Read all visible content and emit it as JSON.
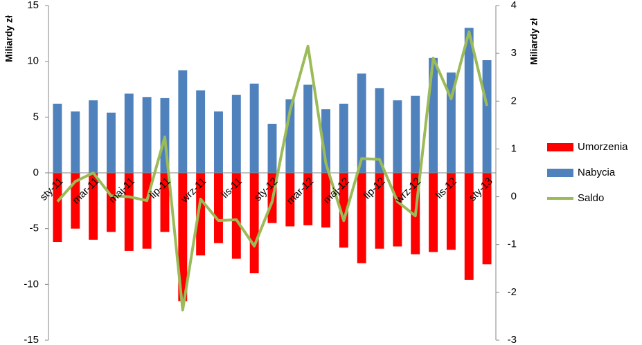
{
  "chart_data": {
    "type": "bar",
    "y_label": "Miliardy zł",
    "y2_label": "Miliardy zł",
    "categories": [
      "sty-11",
      null,
      "mar-11",
      null,
      "maj-11",
      null,
      "lip-11",
      null,
      "wrz-11",
      null,
      "lis-11",
      null,
      "sty-12",
      null,
      "mar-12",
      null,
      "maj-12",
      null,
      "lip-12",
      null,
      "wrz-12",
      null,
      "lis-12",
      null,
      "sty-13"
    ],
    "series": [
      {
        "name": "Umorzenia",
        "color": "#ff0000",
        "values": [
          -6.2,
          -5.0,
          -6.0,
          -5.3,
          -7.0,
          -6.8,
          -5.3,
          -11.5,
          -7.4,
          -6.3,
          -7.7,
          -9.0,
          -4.5,
          -4.8,
          -4.7,
          -4.9,
          -6.7,
          -8.1,
          -6.8,
          -6.6,
          -7.3,
          -7.1,
          -6.9,
          -9.6,
          -8.2
        ]
      },
      {
        "name": "Nabycia",
        "color": "#4f81bd",
        "values": [
          6.2,
          5.5,
          6.5,
          5.4,
          7.1,
          6.8,
          6.7,
          9.2,
          7.4,
          5.5,
          7.0,
          8.0,
          4.4,
          6.6,
          7.9,
          5.7,
          6.2,
          8.9,
          7.6,
          6.5,
          6.9,
          10.3,
          9.0,
          13.0,
          10.1
        ]
      },
      {
        "name": "Saldo",
        "color": "#9bbb59",
        "type": "line",
        "axis": "y2",
        "values": [
          -0.1,
          0.32,
          0.5,
          0.02,
          0.0,
          -0.08,
          1.25,
          -2.37,
          -0.05,
          -0.5,
          -0.48,
          -1.03,
          -0.1,
          1.8,
          3.15,
          0.7,
          -0.5,
          0.8,
          0.78,
          -0.1,
          -0.4,
          2.9,
          2.05,
          3.45,
          1.9
        ]
      }
    ],
    "ylim": [
      -15,
      15
    ],
    "yticks": [
      -15,
      -10,
      -5,
      0,
      5,
      10,
      15
    ],
    "y2lim": [
      -3,
      4
    ],
    "y2ticks": [
      -3,
      -2,
      -1,
      0,
      1,
      2,
      3,
      4
    ],
    "grid": false,
    "legend": "right"
  }
}
